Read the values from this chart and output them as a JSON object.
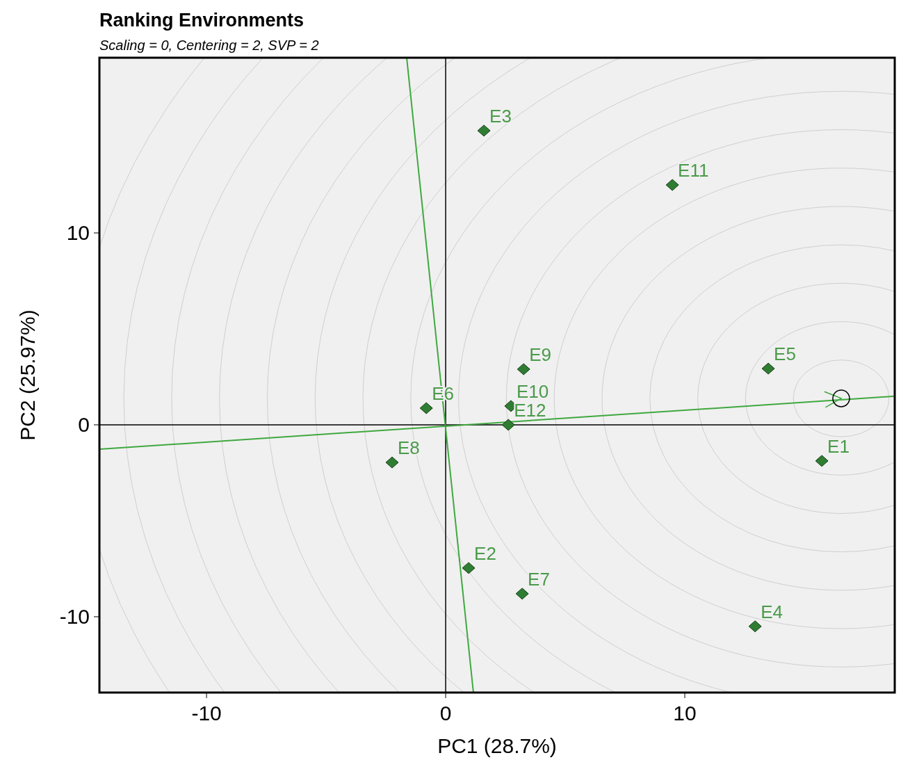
{
  "chart_data": {
    "type": "scatter",
    "title": "Ranking Environments",
    "subtitle": "Scaling = 0, Centering = 2, SVP = 2",
    "xlabel": "PC1 (28.7%)",
    "ylabel": "PC2 (25.97%)",
    "xlim": [
      -14.48,
      18.78
    ],
    "ylim": [
      -13.95,
      19.13
    ],
    "xticks": [
      -10,
      0,
      10
    ],
    "yticks": [
      -10,
      0,
      10
    ],
    "grid": false,
    "marker": "diamond",
    "series": [
      {
        "type": "line",
        "color": "#000000",
        "x": [
          0,
          0
        ],
        "values": [
          -13.95,
          19.13
        ],
        "marker": "none"
      },
      {
        "type": "line",
        "color": "#000000",
        "x": [
          -14.48,
          18.78
        ],
        "values": [
          0,
          0
        ],
        "marker": "none"
      },
      {
        "type": "line",
        "color": "#3fa83f",
        "x": [
          -14.48,
          18.78
        ],
        "values": [
          -1.27,
          1.49
        ],
        "marker": "none"
      },
      {
        "type": "line",
        "color": "#3fa83f",
        "x": [
          -1.63,
          1.16
        ],
        "values": [
          19.13,
          -13.95
        ],
        "marker": "none"
      },
      {
        "type": "scatter",
        "color": "#000000",
        "x": [
          16.54
        ],
        "values": [
          1.38
        ],
        "marker": "circle"
      },
      {
        "name": "E1",
        "color": "#2e7d32",
        "x": [
          15.73
        ],
        "values": [
          -1.88
        ]
      },
      {
        "name": "E2",
        "color": "#2e7d32",
        "x": [
          0.96
        ],
        "values": [
          -7.46
        ]
      },
      {
        "name": "E3",
        "color": "#2e7d32",
        "x": [
          1.6
        ],
        "values": [
          15.33
        ]
      },
      {
        "name": "E4",
        "color": "#2e7d32",
        "x": [
          12.94
        ],
        "values": [
          -10.5
        ]
      },
      {
        "name": "E5",
        "color": "#2e7d32",
        "x": [
          13.49
        ],
        "values": [
          2.93
        ]
      },
      {
        "name": "E6",
        "color": "#2e7d32",
        "x": [
          -0.81
        ],
        "values": [
          0.87
        ]
      },
      {
        "name": "E7",
        "color": "#2e7d32",
        "x": [
          3.2
        ],
        "values": [
          -8.8
        ]
      },
      {
        "name": "E8",
        "color": "#2e7d32",
        "x": [
          -2.24
        ],
        "values": [
          -1.96
        ]
      },
      {
        "name": "E9",
        "color": "#2e7d32",
        "x": [
          3.26
        ],
        "values": [
          2.9
        ]
      },
      {
        "name": "E10",
        "color": "#2e7d32",
        "x": [
          2.73
        ],
        "values": [
          0.98
        ]
      },
      {
        "name": "E11",
        "color": "#2e7d32",
        "x": [
          9.48
        ],
        "values": [
          12.5
        ]
      },
      {
        "name": "E12",
        "color": "#2e7d32",
        "x": [
          2.62
        ],
        "values": [
          0
        ]
      }
    ]
  }
}
